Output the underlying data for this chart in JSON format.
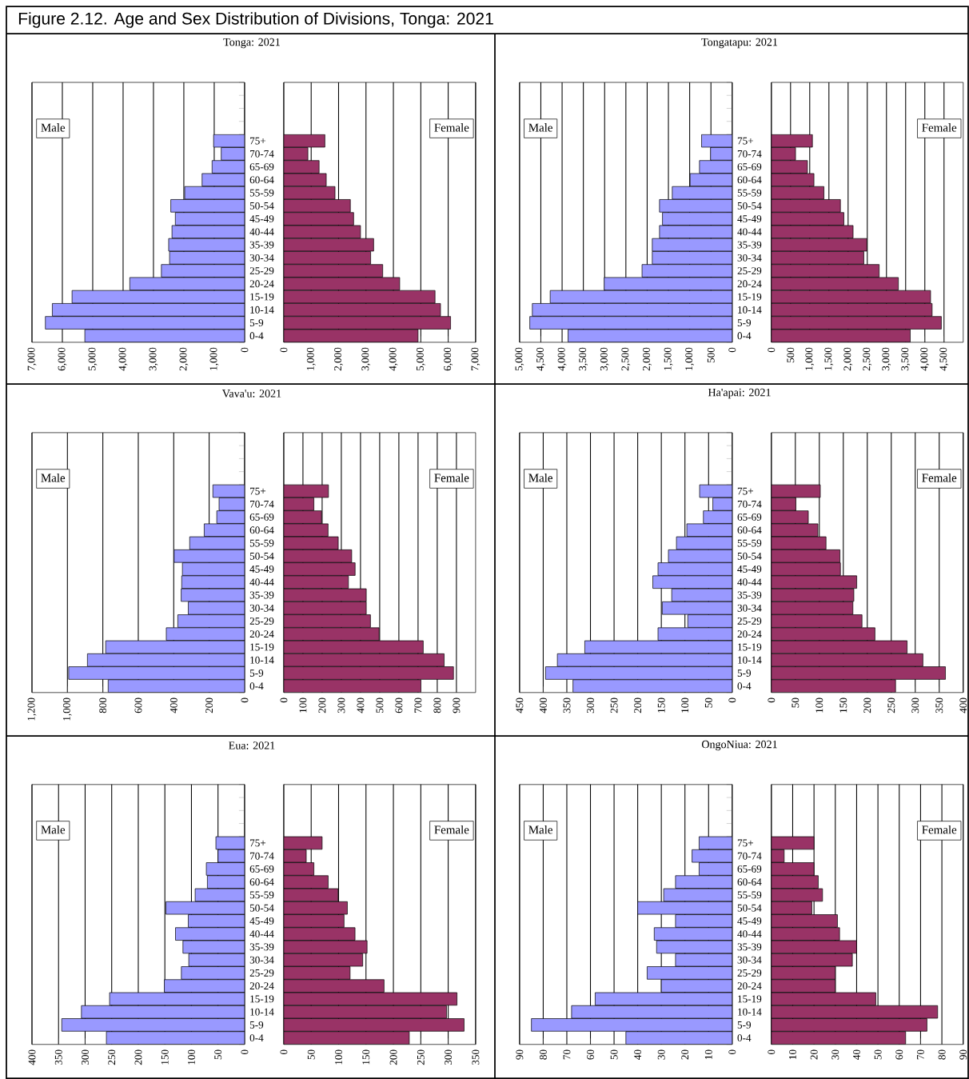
{
  "chart_data": [
    {
      "type": "other",
      "title": "Figure 2.12. Age and Sex Distribution of Divisions, Tonga: 2021"
    },
    {
      "type": "bar",
      "orientation": "horizontal",
      "title": "Tonga: 2021",
      "categories": [
        "75+",
        "70-74",
        "65-69",
        "60-64",
        "55-59",
        "50-54",
        "45-49",
        "40-44",
        "35-39",
        "30-34",
        "25-29",
        "20-24",
        "15-19",
        "10-14",
        "5-9",
        "0-4"
      ],
      "xlim": [
        7000,
        0
      ],
      "xticks": [
        {
          "value": 7000,
          "label": "7,000"
        },
        {
          "value": 6000,
          "label": "6,000"
        },
        {
          "value": 5000,
          "label": "5,000"
        },
        {
          "value": 4000,
          "label": "4,000"
        },
        {
          "value": 3000,
          "label": "3,000"
        },
        {
          "value": 2000,
          "label": "2,000"
        },
        {
          "value": 1000,
          "label": "1,000"
        },
        0
      ],
      "grid": "x",
      "legend": "top left",
      "series": [
        {
          "name": "Male",
          "color": "#9999ff",
          "values": [
            1020,
            770,
            1070,
            1400,
            1970,
            2430,
            2280,
            2390,
            2500,
            2470,
            2740,
            3780,
            5680,
            6330,
            6560,
            5260
          ]
        }
      ]
    },
    {
      "type": "bar",
      "orientation": "horizontal",
      "categories": [
        null,
        null,
        null,
        null,
        null,
        null,
        null,
        null,
        null,
        null,
        null,
        null,
        null,
        null,
        null,
        null,
        null,
        null,
        null,
        null
      ],
      "xlim": [
        0,
        7000
      ],
      "xticks": [
        0,
        {
          "value": 1000,
          "label": "1,000"
        },
        {
          "value": 2000,
          "label": "2,000"
        },
        {
          "value": 3000,
          "label": "3,000"
        },
        {
          "value": 4000,
          "label": "4,000"
        },
        {
          "value": 5000,
          "label": "5,000"
        },
        {
          "value": 6000,
          "label": "6,000"
        },
        {
          "value": 7000,
          "label": "7,000"
        }
      ],
      "grid": "x",
      "legend": "top right",
      "tick_labels": "x",
      "series": [
        {
          "name": "Female",
          "color": "#993366",
          "values": [
            null,
            null,
            null,
            null,
            1500,
            880,
            1290,
            1550,
            1870,
            2430,
            2550,
            2800,
            3280,
            3170,
            3610,
            4230,
            5520,
            5720,
            6090,
            4900
          ]
        }
      ]
    },
    {
      "type": "bar",
      "orientation": "horizontal",
      "title": "Tongatapu: 2021",
      "categories": [
        "75+",
        "70-74",
        "65-69",
        "60-64",
        "55-59",
        "50-54",
        "45-49",
        "40-44",
        "35-39",
        "30-34",
        "25-29",
        "20-24",
        "15-19",
        "10-14",
        "5-9",
        "0-4"
      ],
      "xlim": [
        5000,
        0
      ],
      "xticks": [
        {
          "value": 5000,
          "label": "5,000"
        },
        {
          "value": 4500,
          "label": "4,500"
        },
        {
          "value": 4000,
          "label": "4,000"
        },
        {
          "value": 3500,
          "label": "3,500"
        },
        {
          "value": 3000,
          "label": "3,000"
        },
        {
          "value": 2500,
          "label": "2,500"
        },
        {
          "value": 2000,
          "label": "2,000"
        },
        {
          "value": 1500,
          "label": "1,500"
        },
        {
          "value": 1000,
          "label": "1,000"
        },
        500,
        0
      ],
      "grid": "x",
      "legend": "top left",
      "series": [
        {
          "name": "Male",
          "color": "#9999ff",
          "values": [
            720,
            510,
            770,
            990,
            1410,
            1710,
            1640,
            1710,
            1880,
            1880,
            2120,
            3010,
            4280,
            4700,
            4760,
            3860
          ]
        }
      ]
    },
    {
      "type": "bar",
      "orientation": "horizontal",
      "categories": [
        null,
        null,
        null,
        null,
        null,
        null,
        null,
        null,
        null,
        null,
        null,
        null,
        null,
        null,
        null,
        null,
        null,
        null,
        null,
        null
      ],
      "xlim": [
        0,
        5000
      ],
      "xticks": [
        0,
        500,
        {
          "value": 1000,
          "label": "1,000"
        },
        {
          "value": 1500,
          "label": "1,500"
        },
        {
          "value": 2000,
          "label": "2,000"
        },
        {
          "value": 2500,
          "label": "2,500"
        },
        {
          "value": 3000,
          "label": "3,000"
        },
        {
          "value": 3500,
          "label": "3,500"
        },
        {
          "value": 4000,
          "label": "4,000"
        },
        {
          "value": 4500,
          "label": "4,500"
        }
      ],
      "grid": "x",
      "legend": "top right",
      "tick_labels": "x",
      "series": [
        {
          "name": "Female",
          "color": "#993366",
          "values": [
            null,
            null,
            null,
            null,
            1070,
            630,
            940,
            1110,
            1370,
            1800,
            1890,
            2130,
            2490,
            2410,
            2810,
            3310,
            4150,
            4190,
            4430,
            3620
          ]
        }
      ]
    },
    {
      "type": "bar",
      "orientation": "horizontal",
      "title": "Vava'u: 2021",
      "categories": [
        "75+",
        "70-74",
        "65-69",
        "60-64",
        "55-59",
        "50-54",
        "45-49",
        "40-44",
        "35-39",
        "30-34",
        "25-29",
        "20-24",
        "15-19",
        "10-14",
        "5-9",
        "0-4"
      ],
      "xlim": [
        1200,
        0
      ],
      "xticks": [
        {
          "value": 1200,
          "label": "1,200"
        },
        {
          "value": 1000,
          "label": "1,000"
        },
        800,
        600,
        400,
        200,
        0
      ],
      "grid": "x",
      "legend": "top left",
      "series": [
        {
          "name": "Male",
          "color": "#9999ff",
          "values": [
            179,
            144,
            157,
            228,
            310,
            398,
            351,
            355,
            358,
            318,
            377,
            442,
            784,
            887,
            993,
            770
          ]
        }
      ]
    },
    {
      "type": "bar",
      "orientation": "horizontal",
      "categories": [
        null,
        null,
        null,
        null,
        null,
        null,
        null,
        null,
        null,
        null,
        null,
        null,
        null,
        null,
        null,
        null,
        null,
        null,
        null,
        null
      ],
      "xlim": [
        0,
        1000
      ],
      "xticks": [
        0,
        100,
        200,
        300,
        400,
        500,
        600,
        700,
        800,
        900
      ],
      "grid": "x",
      "legend": "top right",
      "tick_labels": "x",
      "series": [
        {
          "name": "Female",
          "color": "#993366",
          "values": [
            null,
            null,
            null,
            null,
            233,
            157,
            197,
            231,
            284,
            354,
            372,
            337,
            430,
            430,
            452,
            497,
            727,
            836,
            885,
            715
          ]
        }
      ]
    },
    {
      "type": "bar",
      "orientation": "horizontal",
      "title": "Ha'apai: 2021",
      "categories": [
        "75+",
        "70-74",
        "65-69",
        "60-64",
        "55-59",
        "50-54",
        "45-49",
        "40-44",
        "35-39",
        "30-34",
        "25-29",
        "20-24",
        "15-19",
        "10-14",
        "5-9",
        "0-4"
      ],
      "xlim": [
        450,
        0
      ],
      "xticks": [
        450,
        400,
        350,
        300,
        250,
        200,
        150,
        100,
        50,
        0
      ],
      "grid": "x",
      "legend": "top left",
      "series": [
        {
          "name": "Male",
          "color": "#9999ff",
          "values": [
            69,
            41,
            61,
            96,
            118,
            135,
            157,
            168,
            128,
            148,
            94,
            157,
            312,
            370,
            395,
            337
          ]
        }
      ]
    },
    {
      "type": "bar",
      "orientation": "horizontal",
      "categories": [
        null,
        null,
        null,
        null,
        null,
        null,
        null,
        null,
        null,
        null,
        null,
        null,
        null,
        null,
        null,
        null,
        null,
        null,
        null,
        null
      ],
      "xlim": [
        0,
        400
      ],
      "xticks": [
        0,
        50,
        100,
        150,
        200,
        250,
        300,
        350,
        400
      ],
      "grid": "x",
      "legend": "top right",
      "tick_labels": "x",
      "series": [
        {
          "name": "Female",
          "color": "#993366",
          "values": [
            null,
            null,
            null,
            null,
            102,
            51,
            77,
            97,
            114,
            143,
            144,
            178,
            172,
            170,
            189,
            216,
            283,
            316,
            363,
            259
          ]
        }
      ]
    },
    {
      "type": "bar",
      "orientation": "horizontal",
      "title": "Eua: 2021",
      "categories": [
        "75+",
        "70-74",
        "65-69",
        "60-64",
        "55-59",
        "50-54",
        "45-49",
        "40-44",
        "35-39",
        "30-34",
        "25-29",
        "20-24",
        "15-19",
        "10-14",
        "5-9",
        "0-4"
      ],
      "xlim": [
        400,
        0
      ],
      "xticks": [
        400,
        350,
        300,
        250,
        200,
        150,
        100,
        50,
        0
      ],
      "grid": "x",
      "legend": "top left",
      "series": [
        {
          "name": "Male",
          "color": "#9999ff",
          "values": [
            54,
            50,
            72,
            70,
            93,
            148,
            106,
            130,
            116,
            105,
            119,
            151,
            254,
            307,
            344,
            260
          ]
        }
      ]
    },
    {
      "type": "bar",
      "orientation": "horizontal",
      "categories": [
        null,
        null,
        null,
        null,
        null,
        null,
        null,
        null,
        null,
        null,
        null,
        null,
        null,
        null,
        null,
        null,
        null,
        null,
        null,
        null
      ],
      "xlim": [
        0,
        350
      ],
      "xticks": [
        0,
        50,
        100,
        150,
        200,
        250,
        300,
        350
      ],
      "grid": "x",
      "legend": "top right",
      "tick_labels": "x",
      "series": [
        {
          "name": "Female",
          "color": "#993366",
          "values": [
            null,
            null,
            null,
            null,
            70,
            41,
            55,
            81,
            99,
            116,
            110,
            130,
            152,
            144,
            121,
            183,
            316,
            297,
            329,
            229
          ]
        }
      ]
    },
    {
      "type": "bar",
      "orientation": "horizontal",
      "title": "OngoNiua: 2021",
      "categories": [
        "75+",
        "70-74",
        "65-69",
        "60-64",
        "55-59",
        "50-54",
        "45-49",
        "40-44",
        "35-39",
        "30-34",
        "25-29",
        "20-24",
        "15-19",
        "10-14",
        "5-9",
        "0-4"
      ],
      "xlim": [
        90,
        0
      ],
      "xticks": [
        90,
        80,
        70,
        60,
        50,
        40,
        30,
        20,
        10,
        0
      ],
      "grid": "x",
      "legend": "top left",
      "series": [
        {
          "name": "Male",
          "color": "#9999ff",
          "values": [
            14,
            17,
            14,
            24,
            29,
            40,
            24,
            33,
            32,
            24,
            36,
            30,
            58,
            68,
            85,
            45
          ]
        }
      ]
    },
    {
      "type": "bar",
      "orientation": "horizontal",
      "categories": [
        null,
        null,
        null,
        null,
        null,
        null,
        null,
        null,
        null,
        null,
        null,
        null,
        null,
        null,
        null,
        null,
        null,
        null,
        null,
        null
      ],
      "xlim": [
        0,
        90
      ],
      "xticks": [
        0,
        10,
        20,
        30,
        40,
        50,
        60,
        70,
        80,
        90
      ],
      "grid": "x",
      "legend": "top right",
      "tick_labels": "x",
      "series": [
        {
          "name": "Female",
          "color": "#993366",
          "values": [
            null,
            null,
            null,
            null,
            20,
            6,
            20,
            22,
            24,
            19,
            31,
            32,
            40,
            38,
            30,
            30,
            49,
            78,
            73,
            63
          ]
        }
      ]
    }
  ]
}
